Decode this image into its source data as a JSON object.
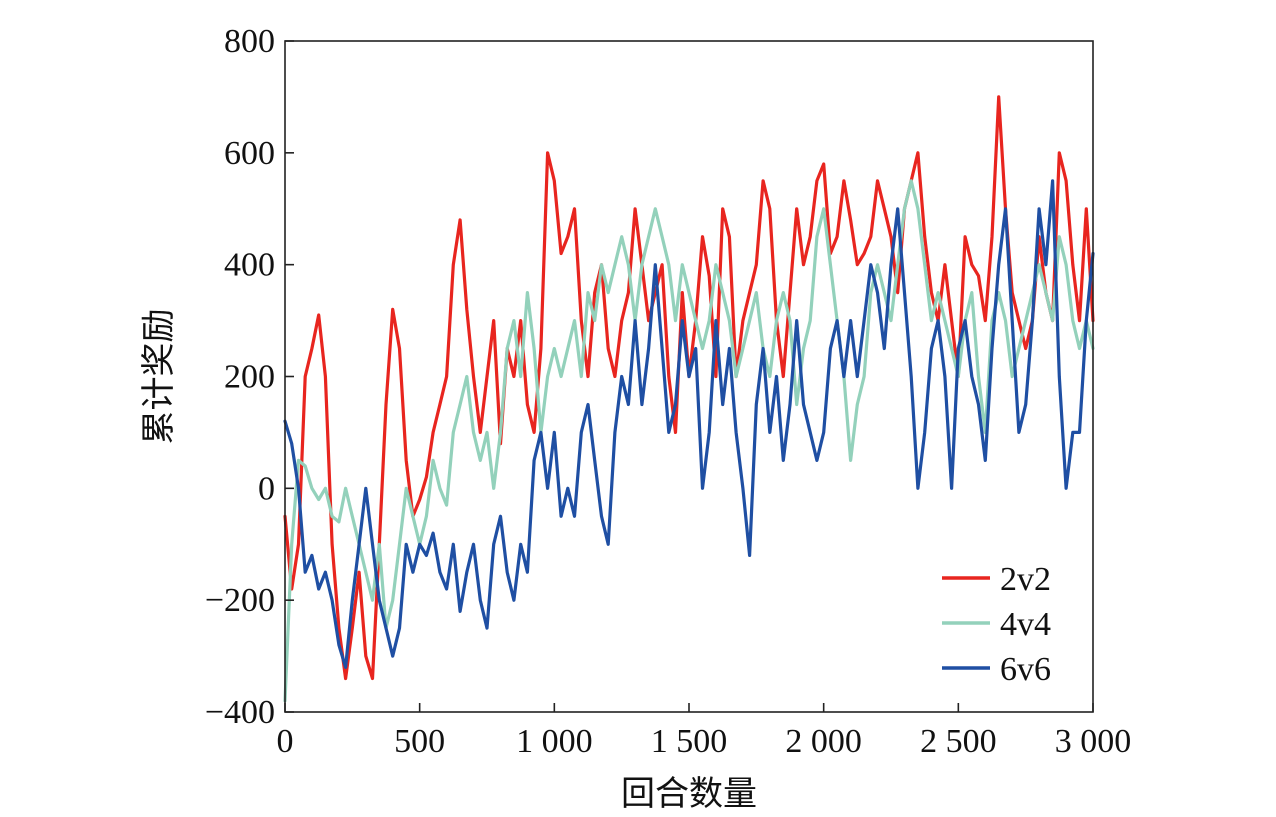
{
  "chart_data": {
    "type": "line",
    "xlabel": "回合数量",
    "ylabel": "累计奖励",
    "xlim": [
      0,
      3000
    ],
    "ylim": [
      -400,
      800
    ],
    "xticks": [
      0,
      500,
      1000,
      1500,
      2000,
      2500,
      3000
    ],
    "xtick_labels": [
      "0",
      "500",
      "1 000",
      "1 500",
      "2 000",
      "2 500",
      "3 000"
    ],
    "yticks": [
      -400,
      -200,
      0,
      200,
      400,
      600,
      800
    ],
    "ytick_labels": [
      "−400",
      "−200",
      "0",
      "200",
      "400",
      "600",
      "800"
    ],
    "grid": false,
    "legend_position": "bottom-right",
    "series": [
      {
        "name": "2v2",
        "color": "#e8251f",
        "x": [
          0,
          25,
          50,
          75,
          100,
          125,
          150,
          175,
          200,
          225,
          250,
          275,
          300,
          325,
          350,
          375,
          400,
          425,
          450,
          475,
          500,
          525,
          550,
          575,
          600,
          625,
          650,
          675,
          700,
          725,
          750,
          775,
          800,
          825,
          850,
          875,
          900,
          925,
          950,
          975,
          1000,
          1025,
          1050,
          1075,
          1100,
          1125,
          1150,
          1175,
          1200,
          1225,
          1250,
          1275,
          1300,
          1325,
          1350,
          1375,
          1400,
          1425,
          1450,
          1475,
          1500,
          1525,
          1550,
          1575,
          1600,
          1625,
          1650,
          1675,
          1700,
          1725,
          1750,
          1775,
          1800,
          1825,
          1850,
          1875,
          1900,
          1925,
          1950,
          1975,
          2000,
          2025,
          2050,
          2075,
          2100,
          2125,
          2150,
          2175,
          2200,
          2225,
          2250,
          2275,
          2300,
          2325,
          2350,
          2375,
          2400,
          2425,
          2450,
          2475,
          2500,
          2525,
          2550,
          2575,
          2600,
          2625,
          2650,
          2675,
          2700,
          2725,
          2750,
          2775,
          2800,
          2825,
          2850,
          2875,
          2900,
          2925,
          2950,
          2975,
          3000
        ],
        "values": [
          -50,
          -180,
          -100,
          200,
          250,
          310,
          200,
          -100,
          -250,
          -340,
          -250,
          -150,
          -300,
          -340,
          -100,
          150,
          320,
          250,
          50,
          -50,
          -20,
          20,
          100,
          150,
          200,
          400,
          480,
          320,
          200,
          100,
          200,
          300,
          80,
          250,
          200,
          300,
          150,
          100,
          250,
          600,
          550,
          420,
          450,
          500,
          300,
          200,
          350,
          400,
          250,
          200,
          300,
          350,
          500,
          400,
          300,
          350,
          400,
          200,
          100,
          350,
          200,
          300,
          450,
          380,
          200,
          500,
          450,
          200,
          300,
          350,
          400,
          550,
          500,
          300,
          200,
          350,
          500,
          400,
          450,
          550,
          580,
          420,
          450,
          550,
          480,
          400,
          420,
          450,
          550,
          500,
          450,
          350,
          500,
          550,
          600,
          450,
          350,
          300,
          400,
          300,
          200,
          450,
          400,
          380,
          300,
          450,
          700,
          500,
          350,
          300,
          250,
          300,
          450,
          350,
          300,
          600,
          550,
          400,
          300,
          500,
          300
        ]
      },
      {
        "name": "4v4",
        "color": "#93d1bb",
        "x": [
          0,
          25,
          50,
          75,
          100,
          125,
          150,
          175,
          200,
          225,
          250,
          275,
          300,
          325,
          350,
          375,
          400,
          425,
          450,
          475,
          500,
          525,
          550,
          575,
          600,
          625,
          650,
          675,
          700,
          725,
          750,
          775,
          800,
          825,
          850,
          875,
          900,
          925,
          950,
          975,
          1000,
          1025,
          1050,
          1075,
          1100,
          1125,
          1150,
          1175,
          1200,
          1225,
          1250,
          1275,
          1300,
          1325,
          1350,
          1375,
          1400,
          1425,
          1450,
          1475,
          1500,
          1525,
          1550,
          1575,
          1600,
          1625,
          1650,
          1675,
          1700,
          1725,
          1750,
          1775,
          1800,
          1825,
          1850,
          1875,
          1900,
          1925,
          1950,
          1975,
          2000,
          2025,
          2050,
          2075,
          2100,
          2125,
          2150,
          2175,
          2200,
          2225,
          2250,
          2275,
          2300,
          2325,
          2350,
          2375,
          2400,
          2425,
          2450,
          2475,
          2500,
          2525,
          2550,
          2575,
          2600,
          2625,
          2650,
          2675,
          2700,
          2725,
          2750,
          2775,
          2800,
          2825,
          2850,
          2875,
          2900,
          2925,
          2950,
          2975,
          3000
        ],
        "values": [
          -380,
          -100,
          50,
          40,
          0,
          -20,
          0,
          -50,
          -60,
          0,
          -50,
          -100,
          -150,
          -200,
          -100,
          -250,
          -200,
          -100,
          0,
          -50,
          -100,
          -50,
          50,
          0,
          -30,
          100,
          150,
          200,
          100,
          50,
          100,
          0,
          100,
          250,
          300,
          200,
          350,
          250,
          100,
          200,
          250,
          200,
          250,
          300,
          200,
          350,
          300,
          400,
          350,
          400,
          450,
          400,
          300,
          400,
          450,
          500,
          450,
          400,
          300,
          400,
          350,
          300,
          250,
          300,
          400,
          350,
          300,
          200,
          250,
          300,
          350,
          250,
          200,
          300,
          350,
          300,
          150,
          250,
          300,
          450,
          500,
          400,
          300,
          200,
          50,
          150,
          200,
          350,
          400,
          350,
          300,
          400,
          500,
          550,
          500,
          400,
          300,
          350,
          300,
          250,
          200,
          300,
          350,
          200,
          100,
          300,
          350,
          300,
          200,
          250,
          300,
          350,
          400,
          350,
          300,
          450,
          400,
          300,
          250,
          300,
          250
        ]
      },
      {
        "name": "6v6",
        "color": "#1f4fa3",
        "x": [
          0,
          25,
          50,
          75,
          100,
          125,
          150,
          175,
          200,
          225,
          250,
          275,
          300,
          325,
          350,
          375,
          400,
          425,
          450,
          475,
          500,
          525,
          550,
          575,
          600,
          625,
          650,
          675,
          700,
          725,
          750,
          775,
          800,
          825,
          850,
          875,
          900,
          925,
          950,
          975,
          1000,
          1025,
          1050,
          1075,
          1100,
          1125,
          1150,
          1175,
          1200,
          1225,
          1250,
          1275,
          1300,
          1325,
          1350,
          1375,
          1400,
          1425,
          1450,
          1475,
          1500,
          1525,
          1550,
          1575,
          1600,
          1625,
          1650,
          1675,
          1700,
          1725,
          1750,
          1775,
          1800,
          1825,
          1850,
          1875,
          1900,
          1925,
          1950,
          1975,
          2000,
          2025,
          2050,
          2075,
          2100,
          2125,
          2150,
          2175,
          2200,
          2225,
          2250,
          2275,
          2300,
          2325,
          2350,
          2375,
          2400,
          2425,
          2450,
          2475,
          2500,
          2525,
          2550,
          2575,
          2600,
          2625,
          2650,
          2675,
          2700,
          2725,
          2750,
          2775,
          2800,
          2825,
          2850,
          2875,
          2900,
          2925,
          2950,
          2975,
          3000
        ],
        "values": [
          120,
          80,
          0,
          -150,
          -120,
          -180,
          -150,
          -200,
          -280,
          -320,
          -200,
          -100,
          0,
          -100,
          -200,
          -250,
          -300,
          -250,
          -100,
          -150,
          -100,
          -120,
          -80,
          -150,
          -180,
          -100,
          -220,
          -150,
          -100,
          -200,
          -250,
          -100,
          -50,
          -150,
          -200,
          -100,
          -150,
          50,
          100,
          0,
          100,
          -50,
          0,
          -50,
          100,
          150,
          50,
          -50,
          -100,
          100,
          200,
          150,
          300,
          150,
          250,
          400,
          250,
          100,
          150,
          300,
          200,
          250,
          0,
          100,
          300,
          150,
          250,
          100,
          0,
          -120,
          150,
          250,
          100,
          200,
          50,
          150,
          300,
          150,
          100,
          50,
          100,
          250,
          300,
          200,
          300,
          200,
          300,
          400,
          350,
          250,
          400,
          500,
          350,
          200,
          0,
          100,
          250,
          300,
          200,
          0,
          250,
          300,
          200,
          150,
          50,
          250,
          400,
          500,
          300,
          100,
          150,
          300,
          500,
          400,
          550,
          200,
          0,
          100,
          100,
          300,
          420
        ]
      }
    ]
  }
}
